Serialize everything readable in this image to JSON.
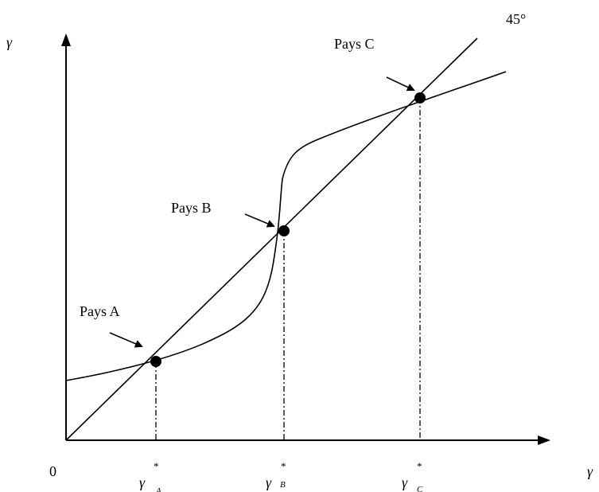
{
  "labels": {
    "y_axis": "γ",
    "x_axis": "γ",
    "origin": "0",
    "angle": "45°",
    "country_a": "Pays A",
    "country_b": "Pays B",
    "country_c": "Pays C",
    "tick_a": "γ",
    "tick_a_sub": "A",
    "tick_b": "γ",
    "tick_b_sub": "B",
    "tick_c": "γ",
    "tick_c_sub": "C",
    "star": "*"
  }
}
